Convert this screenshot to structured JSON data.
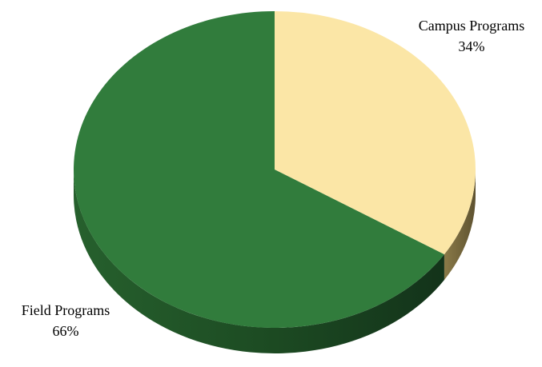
{
  "chart_data": {
    "type": "pie",
    "style": "3d",
    "title": "",
    "slices": [
      {
        "label": "Campus Programs",
        "value": 34,
        "percent_label": "34%",
        "color": "#fbe6a6",
        "side_color": "#7a6a3a"
      },
      {
        "label": "Field Programs",
        "value": 66,
        "percent_label": "66%",
        "color": "#317c3c",
        "side_color": "#1a4a21"
      }
    ],
    "start_angle_deg": 0,
    "direction": "clockwise",
    "legend": "none",
    "data_labels": "outside"
  }
}
